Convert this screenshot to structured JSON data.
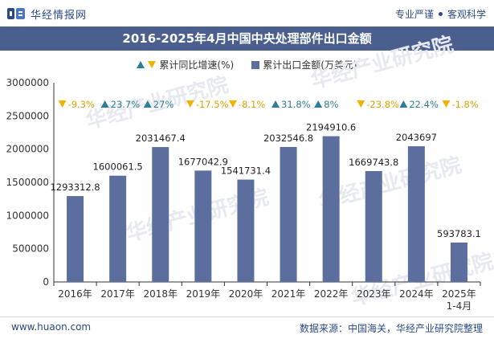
{
  "header": {
    "brand_name": "华经情报网",
    "slogan_left": "专业严谨",
    "slogan_right": "客观科学"
  },
  "footer": {
    "website": "www.huaon.com",
    "source": "数据来源：中国海关，华经产业研究院整理"
  },
  "watermark_text": "华经产业研究院",
  "colors": {
    "bar": "#5b6e9e",
    "title_bg": "#4a5f8e",
    "up": "#2e7d9a",
    "down": "#f0b400"
  },
  "chart_data": {
    "type": "bar",
    "title": "2016-2025年4月中国中央处理部件出口金额",
    "legend": [
      "累计同比增速(%)",
      "累计出口金额(万美元)"
    ],
    "legend_position": "top-center",
    "categories": [
      "2016年",
      "2017年",
      "2018年",
      "2019年",
      "2020年",
      "2021年",
      "2022年",
      "2023年",
      "2024年",
      "2025年\n1-4月"
    ],
    "series": [
      {
        "name": "累计出口金额(万美元)",
        "values": [
          1293312.8,
          1600061.5,
          2031467.4,
          1677042.9,
          1541731.4,
          2032546.8,
          2194910.6,
          1669743.8,
          2043697,
          593783.1
        ],
        "value_labels": [
          "1293312.8",
          "1600061.5",
          "2031467.4",
          "1677042.9",
          "1541731.4",
          "2032546.8",
          "2194910.6",
          "1669743.8",
          "2043697",
          "593783.1"
        ]
      },
      {
        "name": "累计同比增速(%)",
        "values": [
          -9.3,
          23.7,
          27,
          -17.5,
          -8.1,
          31.8,
          8,
          -23.8,
          22.4,
          -1.8
        ],
        "value_labels": [
          "-9.3%",
          "23.7%",
          "27%",
          "-17.5%",
          "-8.1%",
          "31.8%",
          "8%",
          "-23.8%",
          "22.4%",
          "-1.8%"
        ]
      }
    ],
    "yticks": [
      "0",
      "500000",
      "1000000",
      "1500000",
      "2000000",
      "2500000",
      "3000000"
    ],
    "ylim": [
      0,
      3000000
    ],
    "xlabel": "",
    "ylabel": "",
    "grid": false
  }
}
